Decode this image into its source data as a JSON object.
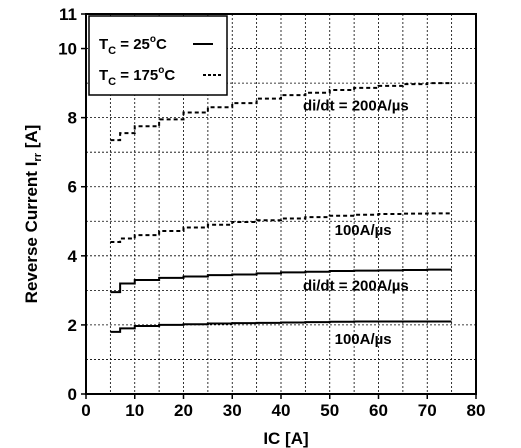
{
  "chart_data": {
    "type": "line",
    "xlabel": "IC [A]",
    "ylabel": "Reverse Current I",
    "ylabel_subscript": "rr",
    "ylabel_unit": " [A]",
    "xlim": [
      0,
      80
    ],
    "ylim": [
      0,
      11
    ],
    "x_ticks": [
      0,
      10,
      20,
      30,
      40,
      50,
      60,
      70,
      80
    ],
    "x_tick_labels": [
      "0",
      "10",
      "20",
      "30",
      "40",
      "50",
      "60",
      "70",
      "80"
    ],
    "y_ticks": [
      0,
      2,
      4,
      6,
      8,
      10,
      11
    ],
    "y_tick_labels": [
      "0",
      "2",
      "4",
      "6",
      "8",
      "10",
      "11"
    ],
    "y_grid": [
      1,
      2,
      3,
      4,
      5,
      6,
      7,
      8,
      9,
      10,
      11
    ],
    "grid": true,
    "legend_position": "top-left",
    "legend": [
      {
        "prefix": "T",
        "sub": "C",
        "eq": " = 25",
        "sup": "o",
        "unit": "C",
        "style": "solid"
      },
      {
        "prefix": "T",
        "sub": "C",
        "eq": " = 175",
        "sup": "o",
        "unit": "C",
        "style": "dashed"
      }
    ],
    "annotations": [
      {
        "text": "di/dt = 200A/µs",
        "x": 44.5,
        "y": 8.2
      },
      {
        "text": "100A/µs",
        "x": 51,
        "y": 4.6
      },
      {
        "text": "di/dt = 200A/µs",
        "x": 44.5,
        "y": 3.0
      },
      {
        "text": "100A/µs",
        "x": 51,
        "y": 1.45
      }
    ],
    "series": [
      {
        "style": "dashed",
        "x": [
          5,
          7,
          10,
          15,
          20,
          25,
          30,
          35,
          40,
          45,
          50,
          55,
          60,
          65,
          70,
          75
        ],
        "y": [
          7.35,
          7.55,
          7.75,
          7.95,
          8.15,
          8.3,
          8.42,
          8.55,
          8.65,
          8.72,
          8.8,
          8.86,
          8.92,
          8.97,
          9.0,
          9.0
        ]
      },
      {
        "style": "dashed",
        "x": [
          5,
          7,
          10,
          15,
          20,
          25,
          30,
          35,
          40,
          45,
          50,
          55,
          60,
          65,
          70,
          75
        ],
        "y": [
          4.4,
          4.5,
          4.6,
          4.72,
          4.82,
          4.9,
          4.98,
          5.03,
          5.08,
          5.12,
          5.16,
          5.19,
          5.21,
          5.22,
          5.23,
          5.23
        ]
      },
      {
        "style": "solid",
        "x": [
          5,
          7,
          10,
          15,
          20,
          25,
          30,
          35,
          40,
          45,
          50,
          55,
          60,
          65,
          70,
          75
        ],
        "y": [
          2.95,
          3.2,
          3.3,
          3.36,
          3.4,
          3.44,
          3.46,
          3.49,
          3.52,
          3.54,
          3.56,
          3.57,
          3.58,
          3.59,
          3.6,
          3.6
        ]
      },
      {
        "style": "solid",
        "x": [
          5,
          7,
          10,
          15,
          20,
          25,
          30,
          35,
          40,
          45,
          50,
          55,
          60,
          65,
          70,
          75
        ],
        "y": [
          1.8,
          1.9,
          1.97,
          2.0,
          2.02,
          2.04,
          2.05,
          2.06,
          2.07,
          2.08,
          2.09,
          2.1,
          2.1,
          2.1,
          2.1,
          2.1
        ]
      }
    ]
  }
}
